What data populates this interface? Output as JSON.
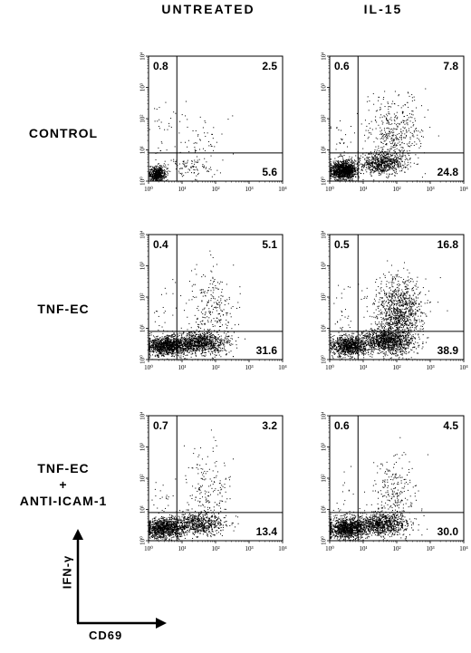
{
  "columns": [
    "UNTREATED",
    "IL-15"
  ],
  "rows": [
    {
      "label_lines": [
        "CONTROL"
      ]
    },
    {
      "label_lines": [
        "TNF-EC"
      ]
    },
    {
      "label_lines": [
        "TNF-EC",
        "+",
        "ANTI-ICAM-1"
      ]
    }
  ],
  "axis_legend": {
    "y_label": "IFN-γ",
    "x_label": "CD69"
  },
  "chart_data": [
    {
      "type": "scatter",
      "row": "CONTROL",
      "column": "UNTREATED",
      "xscale": "log",
      "yscale": "log",
      "xlim": [
        1,
        10000
      ],
      "ylim": [
        1,
        10000
      ],
      "x_ticks": [
        "10⁰",
        "10¹",
        "10²",
        "10³",
        "10⁴"
      ],
      "y_ticks": [
        "10⁰",
        "10¹",
        "10²",
        "10³",
        "10⁴"
      ],
      "gate": [
        7,
        8
      ],
      "quadrants": {
        "upper_left": "0.8",
        "upper_right": "2.5",
        "lower_right": "5.6"
      }
    },
    {
      "type": "scatter",
      "row": "CONTROL",
      "column": "IL-15",
      "xscale": "log",
      "yscale": "log",
      "xlim": [
        1,
        10000
      ],
      "ylim": [
        1,
        10000
      ],
      "x_ticks": [
        "10⁰",
        "10¹",
        "10²",
        "10³",
        "10⁴"
      ],
      "y_ticks": [
        "10⁰",
        "10¹",
        "10²",
        "10³",
        "10⁴"
      ],
      "gate": [
        7,
        8
      ],
      "quadrants": {
        "upper_left": "0.6",
        "upper_right": "7.8",
        "lower_right": "24.8"
      }
    },
    {
      "type": "scatter",
      "row": "TNF-EC",
      "column": "UNTREATED",
      "xscale": "log",
      "yscale": "log",
      "xlim": [
        1,
        10000
      ],
      "ylim": [
        1,
        10000
      ],
      "x_ticks": [
        "10⁰",
        "10¹",
        "10²",
        "10³",
        "10⁴"
      ],
      "y_ticks": [
        "10⁰",
        "10¹",
        "10²",
        "10³",
        "10⁴"
      ],
      "gate": [
        7,
        8
      ],
      "quadrants": {
        "upper_left": "0.4",
        "upper_right": "5.1",
        "lower_right": "31.6"
      }
    },
    {
      "type": "scatter",
      "row": "TNF-EC",
      "column": "IL-15",
      "xscale": "log",
      "yscale": "log",
      "xlim": [
        1,
        10000
      ],
      "ylim": [
        1,
        10000
      ],
      "x_ticks": [
        "10⁰",
        "10¹",
        "10²",
        "10³",
        "10⁴"
      ],
      "y_ticks": [
        "10⁰",
        "10¹",
        "10²",
        "10³",
        "10⁴"
      ],
      "gate": [
        7,
        8
      ],
      "quadrants": {
        "upper_left": "0.5",
        "upper_right": "16.8",
        "lower_right": "38.9"
      }
    },
    {
      "type": "scatter",
      "row": "TNF-EC + ANTI-ICAM-1",
      "column": "UNTREATED",
      "xscale": "log",
      "yscale": "log",
      "xlim": [
        1,
        10000
      ],
      "ylim": [
        1,
        10000
      ],
      "x_ticks": [
        "10⁰",
        "10¹",
        "10²",
        "10³",
        "10⁴"
      ],
      "y_ticks": [
        "10⁰",
        "10¹",
        "10²",
        "10³",
        "10⁴"
      ],
      "gate": [
        7,
        8
      ],
      "quadrants": {
        "upper_left": "0.7",
        "upper_right": "3.2",
        "lower_right": "13.4"
      }
    },
    {
      "type": "scatter",
      "row": "TNF-EC + ANTI-ICAM-1",
      "column": "IL-15",
      "xscale": "log",
      "yscale": "log",
      "xlim": [
        1,
        10000
      ],
      "ylim": [
        1,
        10000
      ],
      "x_ticks": [
        "10⁰",
        "10¹",
        "10²",
        "10³",
        "10⁴"
      ],
      "y_ticks": [
        "10⁰",
        "10¹",
        "10²",
        "10³",
        "10⁴"
      ],
      "gate": [
        7,
        8
      ],
      "quadrants": {
        "upper_left": "0.6",
        "upper_right": "4.5",
        "lower_right": "30.0"
      }
    }
  ]
}
